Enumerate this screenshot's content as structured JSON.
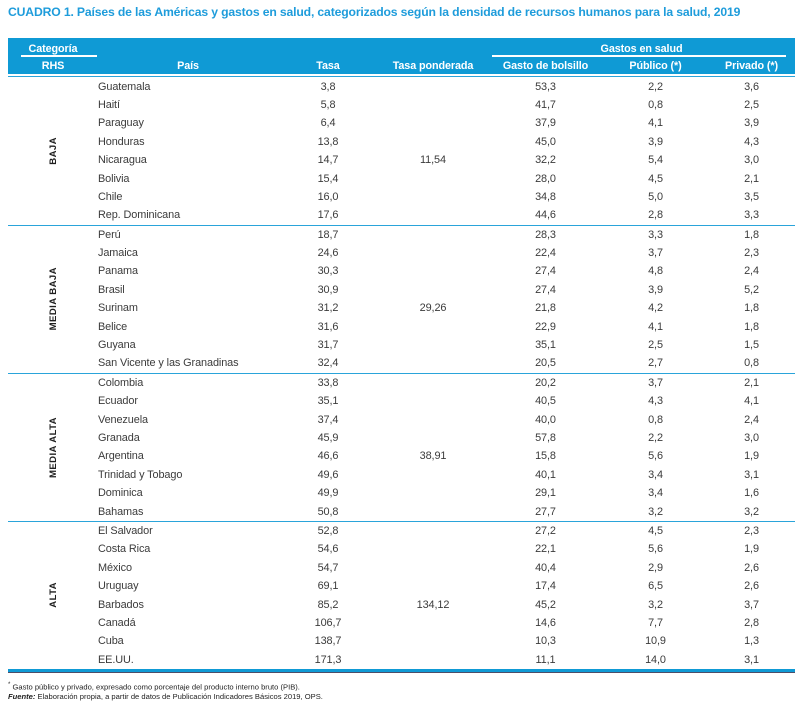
{
  "title": "CUADRO 1. Países de las Américas y gastos en salud, categorizados según la densidad de recursos humanos para la salud, 2019",
  "header": {
    "category_label": "Categoría",
    "rhs_label": "RHS",
    "gastos_label": "Gastos en salud",
    "columns": [
      "País",
      "Tasa",
      "Tasa ponderada",
      "Gasto de bolsillo",
      "Público (*)",
      "Privado (*)"
    ]
  },
  "groups": [
    {
      "label": "BAJA",
      "weighted_rate": "11,54",
      "rows": [
        [
          "Guatemala",
          "3,8",
          "",
          "53,3",
          "2,2",
          "3,6"
        ],
        [
          "Haití",
          "5,8",
          "",
          "41,7",
          "0,8",
          "2,5"
        ],
        [
          "Paraguay",
          "6,4",
          "",
          "37,9",
          "4,1",
          "3,9"
        ],
        [
          "Honduras",
          "13,8",
          "",
          "45,0",
          "3,9",
          "4,3"
        ],
        [
          "Nicaragua",
          "14,7",
          "11,54",
          "32,2",
          "5,4",
          "3,0"
        ],
        [
          "Bolivia",
          "15,4",
          "",
          "28,0",
          "4,5",
          "2,1"
        ],
        [
          "Chile",
          "16,0",
          "",
          "34,8",
          "5,0",
          "3,5"
        ],
        [
          "Rep. Dominicana",
          "17,6",
          "",
          "44,6",
          "2,8",
          "3,3"
        ]
      ]
    },
    {
      "label": "MEDIA BAJA",
      "weighted_rate": "29,26",
      "rows": [
        [
          "Perú",
          "18,7",
          "",
          "28,3",
          "3,3",
          "1,8"
        ],
        [
          "Jamaica",
          "24,6",
          "",
          "22,4",
          "3,7",
          "2,3"
        ],
        [
          "Panama",
          "30,3",
          "",
          "27,4",
          "4,8",
          "2,4"
        ],
        [
          "Brasil",
          "30,9",
          "",
          "27,4",
          "3,9",
          "5,2"
        ],
        [
          "Surinam",
          "31,2",
          "29,26",
          "21,8",
          "4,2",
          "1,8"
        ],
        [
          "Belice",
          "31,6",
          "",
          "22,9",
          "4,1",
          "1,8"
        ],
        [
          "Guyana",
          "31,7",
          "",
          "35,1",
          "2,5",
          "1,5"
        ],
        [
          "San Vicente y las Granadinas",
          "32,4",
          "",
          "20,5",
          "2,7",
          "0,8"
        ]
      ]
    },
    {
      "label": "MEDIA ALTA",
      "weighted_rate": "38,91",
      "rows": [
        [
          "Colombia",
          "33,8",
          "",
          "20,2",
          "3,7",
          "2,1"
        ],
        [
          "Ecuador",
          "35,1",
          "",
          "40,5",
          "4,3",
          "4,1"
        ],
        [
          "Venezuela",
          "37,4",
          "",
          "40,0",
          "0,8",
          "2,4"
        ],
        [
          "Granada",
          "45,9",
          "",
          "57,8",
          "2,2",
          "3,0"
        ],
        [
          "Argentina",
          "46,6",
          "38,91",
          "15,8",
          "5,6",
          "1,9"
        ],
        [
          "Trinidad y Tobago",
          "49,6",
          "",
          "40,1",
          "3,4",
          "3,1"
        ],
        [
          "Dominica",
          "49,9",
          "",
          "29,1",
          "3,4",
          "1,6"
        ],
        [
          "Bahamas",
          "50,8",
          "",
          "27,7",
          "3,2",
          "3,2"
        ]
      ]
    },
    {
      "label": "ALTA",
      "weighted_rate": "134,12",
      "rows": [
        [
          "El Salvador",
          "52,8",
          "",
          "27,2",
          "4,5",
          "2,3"
        ],
        [
          "Costa Rica",
          "54,6",
          "",
          "22,1",
          "5,6",
          "1,9"
        ],
        [
          "México",
          "54,7",
          "",
          "40,4",
          "2,9",
          "2,6"
        ],
        [
          "Uruguay",
          "69,1",
          "",
          "17,4",
          "6,5",
          "2,6"
        ],
        [
          "Barbados",
          "85,2",
          "134,12",
          "45,2",
          "3,2",
          "3,7"
        ],
        [
          "Canadá",
          "106,7",
          "",
          "14,6",
          "7,7",
          "2,8"
        ],
        [
          "Cuba",
          "138,7",
          "",
          "10,3",
          "10,9",
          "1,3"
        ],
        [
          "EE.UU.",
          "171,3",
          "",
          "11,1",
          "14,0",
          "3,1"
        ]
      ]
    }
  ],
  "footnotes": {
    "star": "*",
    "note1": " Gasto público y privado, expresado como porcentaje del producto interno bruto (PIB).",
    "source_label": "Fuente:",
    "source_text": " Elaboración propia, a partir de datos de Publicación Indicadores Básicos 2019, OPS."
  },
  "colors": {
    "header_bg": "#0f9ad5",
    "title_text": "#1e9cdb",
    "separator_line": "#2aa4da",
    "bottom_edge": "#4d4d68"
  }
}
